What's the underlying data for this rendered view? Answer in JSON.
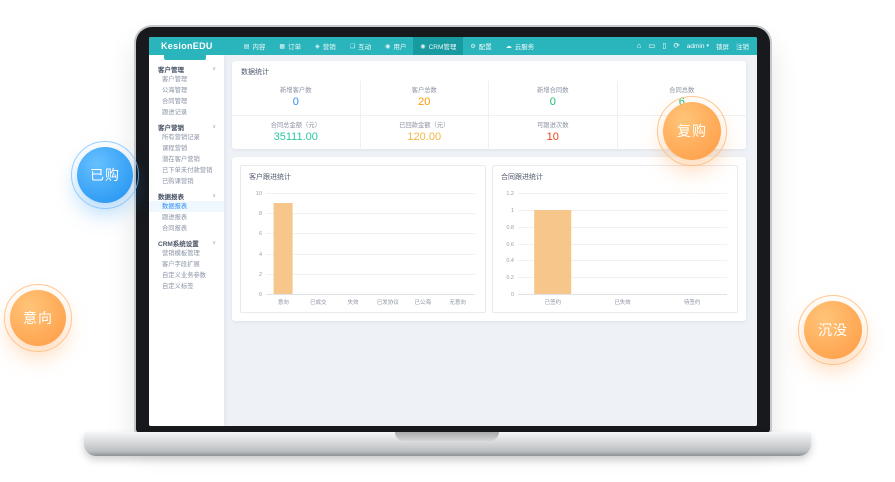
{
  "navbar": {
    "logo": "KesionEDU",
    "items": [
      {
        "label": "内容",
        "icon": "content-icon",
        "glyph": "▤",
        "active": false
      },
      {
        "label": "订单",
        "icon": "orders-icon",
        "glyph": "▦",
        "active": false
      },
      {
        "label": "营销",
        "icon": "marketing-icon",
        "glyph": "◈",
        "active": false
      },
      {
        "label": "互动",
        "icon": "interaction-icon",
        "glyph": "❑",
        "active": false
      },
      {
        "label": "用户",
        "icon": "users-icon",
        "glyph": "◉",
        "active": false
      },
      {
        "label": "CRM管理",
        "icon": "crm-person-icon",
        "glyph": "◉",
        "active": true
      },
      {
        "label": "配置",
        "icon": "settings-gear-icon",
        "glyph": "⚙",
        "active": false
      },
      {
        "label": "云服务",
        "icon": "cloud-icon",
        "glyph": "☁",
        "active": false
      }
    ],
    "right_icons": [
      {
        "name": "home-icon",
        "glyph": "⌂"
      },
      {
        "name": "desktop-icon",
        "glyph": "▭"
      },
      {
        "name": "mobile-icon",
        "glyph": "▯"
      },
      {
        "name": "refresh-icon",
        "glyph": "⟳"
      }
    ],
    "user": "admin",
    "caret": "▾",
    "links": [
      "锁屏",
      "注销"
    ]
  },
  "sidebar": {
    "groups": [
      {
        "label": "客户管理",
        "items": [
          {
            "label": "客户管理",
            "active": false
          },
          {
            "label": "公海管理",
            "active": false
          },
          {
            "label": "合同管理",
            "active": false
          },
          {
            "label": "跟进记录",
            "active": false
          }
        ]
      },
      {
        "label": "客户营销",
        "items": [
          {
            "label": "所有营销记录",
            "active": false
          },
          {
            "label": "课程营销",
            "active": false
          },
          {
            "label": "潜在客户营销",
            "active": false
          },
          {
            "label": "已下单未付款营销",
            "active": false
          },
          {
            "label": "已购课营销",
            "active": false
          }
        ]
      },
      {
        "label": "数据报表",
        "items": [
          {
            "label": "数据报表",
            "active": true
          },
          {
            "label": "跟进报表",
            "active": false
          },
          {
            "label": "合同报表",
            "active": false
          }
        ]
      },
      {
        "label": "CRM系统设置",
        "items": [
          {
            "label": "营销模板管理",
            "active": false
          },
          {
            "label": "客户字段扩展",
            "active": false
          },
          {
            "label": "自定义业务参数",
            "active": false
          },
          {
            "label": "自定义标签",
            "active": false
          }
        ]
      }
    ]
  },
  "stats": {
    "title": "数据统计",
    "row1": [
      {
        "label": "新增客户数",
        "value": "0",
        "color": "#2d8cf0"
      },
      {
        "label": "客户总数",
        "value": "20",
        "color": "#ff9900"
      },
      {
        "label": "新增合同数",
        "value": "0",
        "color": "#19be6b"
      },
      {
        "label": "合同总数",
        "value": "6",
        "color": "#19be6b"
      }
    ],
    "row2": [
      {
        "label": "合同总金额（元）",
        "value": "35111.00",
        "color": "#2bc7a0"
      },
      {
        "label": "已回款金额（元）",
        "value": "120.00",
        "color": "#f5b53f"
      },
      {
        "label": "可跟进次数",
        "value": "10",
        "color": "#ed4014"
      },
      {
        "label": "",
        "value": "",
        "color": ""
      }
    ]
  },
  "chart_data": [
    {
      "type": "bar",
      "title": "客户跟进统计",
      "categories": [
        "意向",
        "已成交",
        "失效",
        "已发协议",
        "已公海",
        "无意向"
      ],
      "values": [
        9,
        0,
        0,
        0,
        0,
        0
      ],
      "xlabel": "",
      "ylabel": "",
      "ylim": [
        0,
        10
      ],
      "yticks": [
        0,
        2,
        4,
        6,
        8,
        10
      ],
      "grid": true,
      "legend_position": "none",
      "bar_color": "#f6c68b"
    },
    {
      "type": "bar",
      "title": "合同跟进统计",
      "categories": [
        "已签约",
        "已失效",
        "待签约"
      ],
      "values": [
        1,
        0,
        0
      ],
      "xlabel": "",
      "ylabel": "",
      "ylim": [
        0,
        1.2
      ],
      "yticks": [
        0,
        0.2,
        0.4,
        0.6,
        0.8,
        1,
        1.2
      ],
      "grid": true,
      "legend_position": "none",
      "bar_color": "#f6c68b"
    }
  ],
  "badges": [
    {
      "label": "已购",
      "theme": "blue"
    },
    {
      "label": "意向",
      "theme": "orange"
    },
    {
      "label": "复购",
      "theme": "orange"
    },
    {
      "label": "沉没",
      "theme": "orange"
    }
  ],
  "colors": {
    "navbar_teal": "#2ab4bc",
    "navbar_active": "#189aa1",
    "sidebar_active_blue": "#2d8cf0",
    "bar_fill": "#f6c68b",
    "badge_blue": "#1e90f0",
    "badge_orange": "#ff9a43"
  }
}
